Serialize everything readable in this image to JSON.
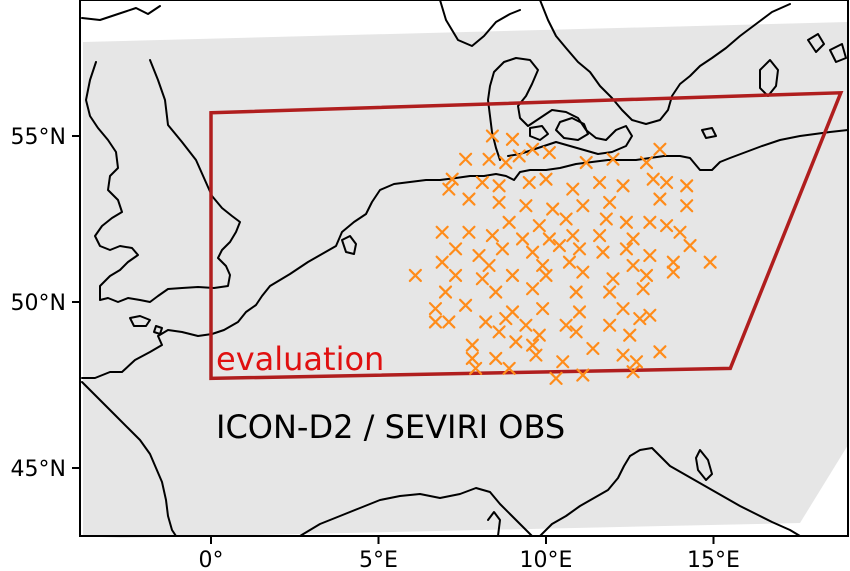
{
  "map": {
    "projection": "lat-lon",
    "extent": {
      "lon": [
        -4,
        19
      ],
      "lat": [
        43.2,
        59
      ]
    },
    "x_ticks": [
      {
        "value": 0,
        "label": "0°"
      },
      {
        "value": 5,
        "label": "5°E"
      },
      {
        "value": 10,
        "label": "10°E"
      },
      {
        "value": 15,
        "label": "15°E"
      }
    ],
    "y_ticks": [
      {
        "value": 55,
        "label": "55°N"
      },
      {
        "value": 50,
        "label": "50°N"
      },
      {
        "value": 45,
        "label": "45°N"
      }
    ],
    "model_domain_color": "#e6e6e6",
    "evaluation_box": {
      "label": "evaluation",
      "color": "#b01e1e",
      "label_color": "#e01010",
      "corners": [
        [
          0,
          55.7
        ],
        [
          18.8,
          56.3
        ],
        [
          15.5,
          48.0
        ],
        [
          0,
          47.7
        ]
      ]
    },
    "title": "ICON-D2 / SEVIRI OBS",
    "observations": {
      "marker": "x",
      "color": "#ff8c1a",
      "points": [
        [
          8.4,
          55.0
        ],
        [
          9.0,
          54.9
        ],
        [
          9.6,
          54.6
        ],
        [
          7.6,
          54.3
        ],
        [
          8.3,
          54.3
        ],
        [
          8.8,
          54.2
        ],
        [
          9.2,
          54.4
        ],
        [
          10.1,
          54.5
        ],
        [
          11.2,
          54.2
        ],
        [
          12.0,
          54.3
        ],
        [
          13.4,
          54.6
        ],
        [
          13.0,
          54.2
        ],
        [
          7.2,
          53.7
        ],
        [
          7.1,
          53.4
        ],
        [
          8.1,
          53.6
        ],
        [
          8.6,
          53.5
        ],
        [
          9.5,
          53.6
        ],
        [
          10.0,
          53.7
        ],
        [
          10.8,
          53.4
        ],
        [
          11.6,
          53.6
        ],
        [
          12.3,
          53.5
        ],
        [
          13.2,
          53.7
        ],
        [
          13.6,
          53.6
        ],
        [
          14.2,
          53.5
        ],
        [
          7.7,
          53.1
        ],
        [
          8.6,
          53.0
        ],
        [
          9.4,
          52.9
        ],
        [
          10.2,
          52.8
        ],
        [
          11.1,
          52.9
        ],
        [
          11.9,
          53.0
        ],
        [
          13.4,
          53.1
        ],
        [
          14.2,
          52.9
        ],
        [
          8.9,
          52.4
        ],
        [
          9.8,
          52.3
        ],
        [
          10.6,
          52.5
        ],
        [
          11.8,
          52.5
        ],
        [
          12.4,
          52.4
        ],
        [
          13.1,
          52.4
        ],
        [
          13.6,
          52.3
        ],
        [
          6.9,
          52.1
        ],
        [
          7.7,
          52.1
        ],
        [
          8.4,
          52.0
        ],
        [
          9.3,
          51.9
        ],
        [
          10.1,
          51.9
        ],
        [
          10.8,
          52.0
        ],
        [
          11.6,
          52.0
        ],
        [
          12.6,
          51.9
        ],
        [
          14.0,
          52.1
        ],
        [
          7.3,
          51.6
        ],
        [
          8.0,
          51.4
        ],
        [
          8.7,
          51.6
        ],
        [
          9.6,
          51.5
        ],
        [
          10.4,
          51.7
        ],
        [
          11.0,
          51.6
        ],
        [
          11.7,
          51.5
        ],
        [
          12.4,
          51.6
        ],
        [
          13.1,
          51.4
        ],
        [
          14.3,
          51.7
        ],
        [
          6.9,
          51.2
        ],
        [
          8.3,
          51.1
        ],
        [
          9.9,
          51.1
        ],
        [
          10.7,
          51.2
        ],
        [
          12.6,
          51.1
        ],
        [
          13.8,
          51.2
        ],
        [
          14.9,
          51.2
        ],
        [
          6.1,
          50.8
        ],
        [
          7.3,
          50.8
        ],
        [
          8.1,
          50.7
        ],
        [
          9.0,
          50.8
        ],
        [
          10.0,
          50.8
        ],
        [
          11.1,
          50.9
        ],
        [
          12.0,
          50.7
        ],
        [
          13.0,
          50.8
        ],
        [
          13.8,
          50.9
        ],
        [
          7.0,
          50.3
        ],
        [
          8.5,
          50.3
        ],
        [
          9.6,
          50.4
        ],
        [
          10.9,
          50.3
        ],
        [
          11.9,
          50.3
        ],
        [
          12.9,
          50.4
        ],
        [
          6.7,
          49.8
        ],
        [
          7.6,
          49.9
        ],
        [
          9.0,
          49.7
        ],
        [
          9.9,
          49.8
        ],
        [
          11.0,
          49.7
        ],
        [
          12.3,
          49.8
        ],
        [
          13.1,
          49.6
        ],
        [
          6.7,
          49.4
        ],
        [
          7.1,
          49.4
        ],
        [
          8.2,
          49.4
        ],
        [
          8.8,
          49.5
        ],
        [
          9.4,
          49.3
        ],
        [
          10.6,
          49.3
        ],
        [
          11.9,
          49.3
        ],
        [
          12.8,
          49.5
        ],
        [
          8.6,
          49.1
        ],
        [
          9.8,
          49.0
        ],
        [
          10.9,
          49.1
        ],
        [
          12.5,
          49.0
        ],
        [
          7.8,
          48.7
        ],
        [
          9.1,
          48.8
        ],
        [
          9.6,
          48.7
        ],
        [
          11.4,
          48.6
        ],
        [
          12.3,
          48.4
        ],
        [
          13.4,
          48.5
        ],
        [
          7.8,
          48.3
        ],
        [
          8.5,
          48.3
        ],
        [
          9.7,
          48.4
        ],
        [
          10.5,
          48.2
        ],
        [
          12.7,
          48.2
        ],
        [
          7.9,
          48.0
        ],
        [
          8.9,
          48.0
        ],
        [
          10.3,
          47.7
        ],
        [
          11.1,
          47.8
        ],
        [
          12.6,
          47.9
        ]
      ]
    }
  }
}
